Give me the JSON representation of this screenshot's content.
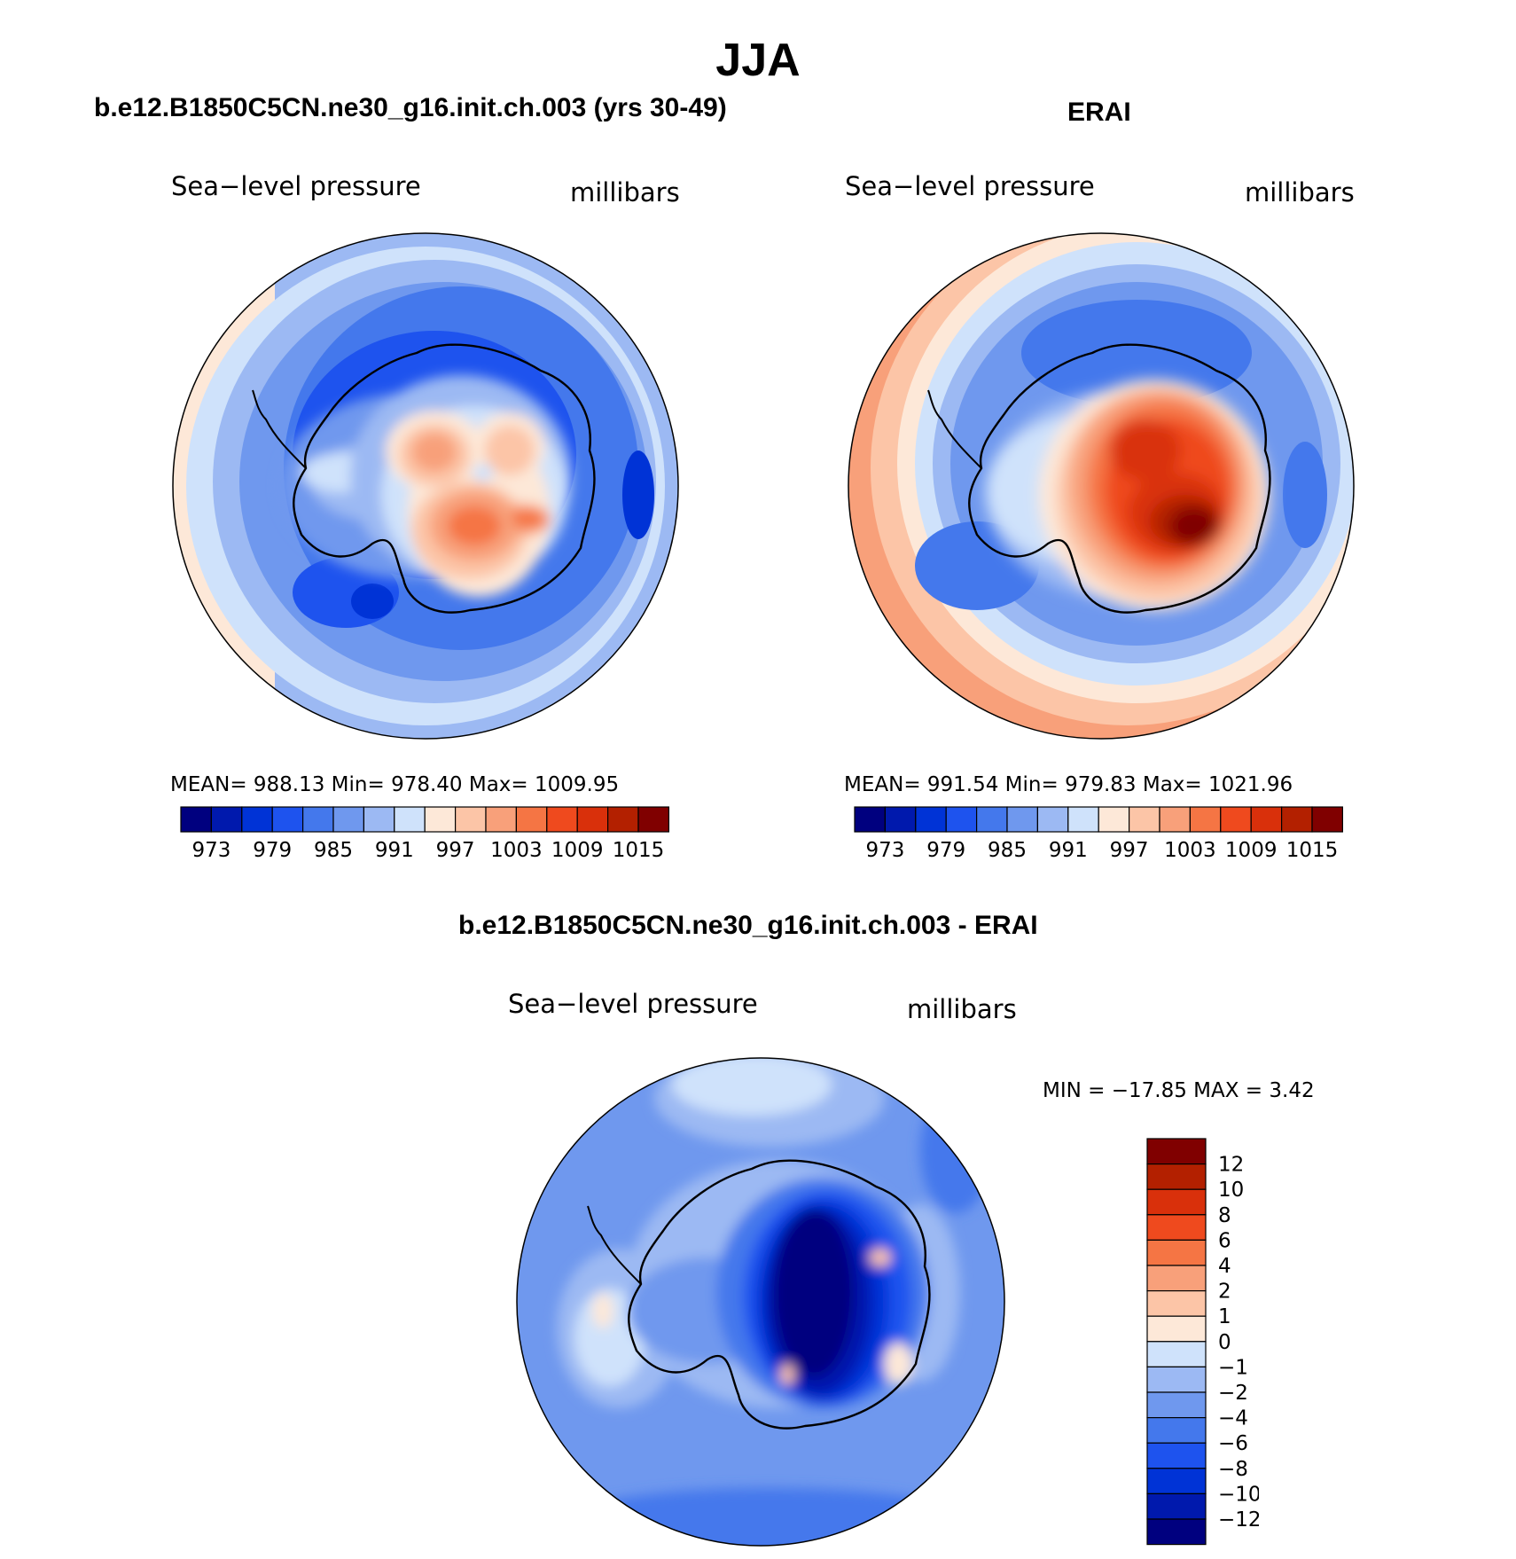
{
  "figure": {
    "title": "JJA"
  },
  "panels": {
    "model": {
      "title": "b.e12.B1850C5CN.ne30_g16.init.ch.003 (yrs 30-49)",
      "variable": "Sea−level pressure",
      "units": "millibars",
      "stats": "MEAN=  988.13   Min=  978.40   Max=  1009.95"
    },
    "obs": {
      "title": "ERAI",
      "variable": "Sea−level pressure",
      "units": "millibars",
      "stats": "MEAN=  991.54   Min=  979.83   Max=  1021.96"
    },
    "diff": {
      "title": "b.e12.B1850C5CN.ne30_g16.init.ch.003 - ERAI",
      "variable": "Sea−level pressure",
      "units": "millibars",
      "stats": "MIN  =  −17.85  MAX  =     3.42"
    }
  },
  "colorbars": {
    "abs": {
      "colors": [
        "#00007f",
        "#0019ad",
        "#0033d6",
        "#1e53ee",
        "#4478ec",
        "#6f98ee",
        "#9cb9f3",
        "#cfe2fb",
        "#fde8d8",
        "#fcc5a7",
        "#f8a07a",
        "#f57544",
        "#ef4a1e",
        "#d9300b",
        "#b32000",
        "#800000"
      ],
      "labels": [
        "973",
        "979",
        "985",
        "991",
        "997",
        "1003",
        "1009",
        "1015"
      ]
    },
    "diff": {
      "colors": [
        "#00007f",
        "#0019ad",
        "#0033d6",
        "#1e53ee",
        "#4478ec",
        "#6f98ee",
        "#9cb9f3",
        "#cfe2fb",
        "#fde8d8",
        "#fcc5a7",
        "#f8a07a",
        "#f57544",
        "#ef4a1e",
        "#d9300b",
        "#b32000",
        "#800000"
      ],
      "labels": [
        "12",
        "10",
        "8",
        "6",
        "4",
        "2",
        "1",
        "0",
        "−1",
        "−2",
        "−4",
        "−6",
        "−8",
        "−10",
        "−12"
      ]
    }
  }
}
